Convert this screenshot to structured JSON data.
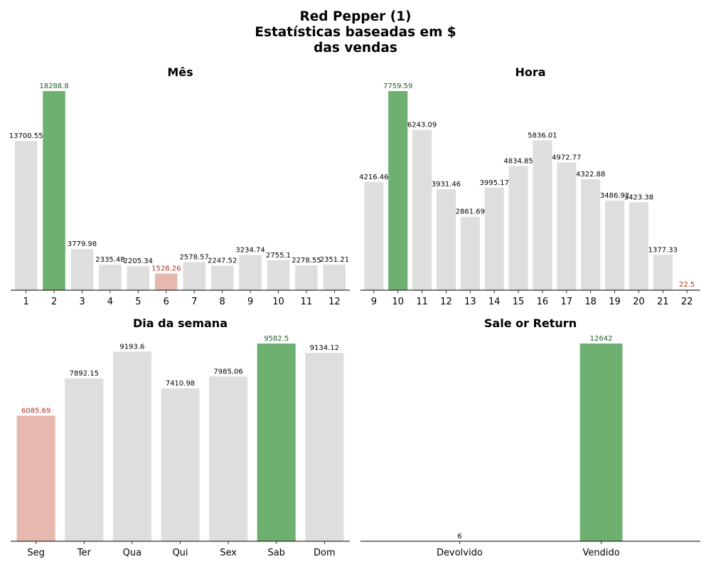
{
  "figure": {
    "title_lines": [
      "Red Pepper (1)",
      "Estatísticas baseadas em $",
      "das vendas"
    ]
  },
  "colors": {
    "default": "#dedede",
    "max": "#6eb070",
    "min": "#e6b8af",
    "max_label": "#1b5e20",
    "min_label": "#b03020",
    "label": "#000000"
  },
  "chart_data": [
    {
      "type": "bar",
      "title": "Mês",
      "categories": [
        "1",
        "2",
        "3",
        "4",
        "5",
        "6",
        "7",
        "8",
        "9",
        "10",
        "11",
        "12"
      ],
      "values": [
        13700.55,
        18288.8,
        3779.98,
        2335.48,
        2205.34,
        1528.26,
        2578.57,
        2247.52,
        3234.74,
        2755.1,
        2278.55,
        2351.21
      ],
      "labels": [
        "13700.55",
        "18288.8",
        "3779.98",
        "2335.48",
        "2205.34",
        "1528.26",
        "2578.57",
        "2247.52",
        "3234.74",
        "2755.1",
        "2278.55",
        "2351.21"
      ],
      "highlight_max": 1,
      "highlight_min": 5
    },
    {
      "type": "bar",
      "title": "Hora",
      "categories": [
        "9",
        "10",
        "11",
        "12",
        "13",
        "14",
        "15",
        "16",
        "17",
        "18",
        "19",
        "20",
        "21",
        "22"
      ],
      "values": [
        4216.46,
        7759.59,
        6243.09,
        3931.46,
        2861.69,
        3995.17,
        4834.85,
        5836.01,
        4972.77,
        4322.88,
        3486.92,
        3423.38,
        1377.33,
        22.5
      ],
      "labels": [
        "4216.46",
        "7759.59",
        "6243.09",
        "3931.46",
        "2861.69",
        "3995.17",
        "4834.85",
        "5836.01",
        "4972.77",
        "4322.88",
        "3486.92",
        "3423.38",
        "1377.33",
        "22.5"
      ],
      "highlight_max": 1,
      "highlight_min": 13
    },
    {
      "type": "bar",
      "title": "Dia da semana",
      "categories": [
        "Seg",
        "Ter",
        "Qua",
        "Qui",
        "Sex",
        "Sab",
        "Dom"
      ],
      "values": [
        6085.69,
        7892.15,
        9193.6,
        7410.98,
        7985.06,
        9582.5,
        9134.12
      ],
      "labels": [
        "6085.69",
        "7892.15",
        "9193.6",
        "7410.98",
        "7985.06",
        "9582.5",
        "9134.12"
      ],
      "highlight_max": 5,
      "highlight_min": 0
    },
    {
      "type": "bar",
      "title": "Sale or Return",
      "categories": [
        "Devolvido",
        "Vendido"
      ],
      "values": [
        6,
        12642
      ],
      "labels": [
        "6",
        "12642"
      ],
      "highlight_max": 1,
      "highlight_min": -1
    }
  ]
}
